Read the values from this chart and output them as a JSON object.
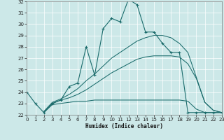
{
  "xlabel": "Humidex (Indice chaleur)",
  "xlim": [
    0,
    23
  ],
  "ylim": [
    22,
    32
  ],
  "xticks": [
    0,
    1,
    2,
    3,
    4,
    5,
    6,
    7,
    8,
    9,
    10,
    11,
    12,
    13,
    14,
    15,
    16,
    17,
    18,
    19,
    20,
    21,
    22,
    23
  ],
  "yticks": [
    22,
    23,
    24,
    25,
    26,
    27,
    28,
    29,
    30,
    31,
    32
  ],
  "bg_color": "#cce8e8",
  "line_color": "#1a6b6b",
  "series": [
    {
      "x": [
        0,
        1,
        2,
        3,
        4,
        5,
        6,
        7,
        8,
        9,
        10,
        11,
        12,
        13,
        14,
        15,
        16,
        17,
        18,
        19,
        20,
        21,
        22,
        23
      ],
      "y": [
        24,
        23,
        22.2,
        23,
        23.3,
        24.5,
        24.8,
        28.0,
        25.5,
        29.6,
        30.5,
        30.2,
        32.2,
        31.7,
        29.3,
        29.3,
        28.3,
        27.5,
        27.5,
        22.2,
        22.2,
        22.2,
        22.2,
        22.2
      ],
      "marker": true
    },
    {
      "x": [
        2,
        3,
        4,
        5,
        6,
        7,
        8,
        9,
        10,
        11,
        12,
        13,
        14,
        15,
        16,
        17,
        18,
        19,
        20,
        21,
        22,
        23
      ],
      "y": [
        22.2,
        22.9,
        23.0,
        23.1,
        23.2,
        23.2,
        23.3,
        23.3,
        23.3,
        23.3,
        23.3,
        23.3,
        23.3,
        23.3,
        23.3,
        23.3,
        23.3,
        23.2,
        22.5,
        22.2,
        22.2,
        22.2
      ],
      "marker": false
    },
    {
      "x": [
        2,
        3,
        4,
        5,
        6,
        7,
        8,
        9,
        10,
        11,
        12,
        13,
        14,
        15,
        16,
        17,
        18,
        19,
        20,
        21,
        22,
        23
      ],
      "y": [
        22.2,
        23.0,
        23.3,
        23.5,
        23.8,
        24.2,
        24.7,
        25.2,
        25.7,
        26.1,
        26.5,
        26.9,
        27.1,
        27.2,
        27.2,
        27.2,
        27.1,
        26.5,
        25.2,
        23.1,
        22.4,
        22.2
      ],
      "marker": false
    },
    {
      "x": [
        2,
        3,
        4,
        5,
        6,
        7,
        8,
        9,
        10,
        11,
        12,
        13,
        14,
        15,
        16,
        17,
        18,
        19,
        20,
        21,
        22,
        23
      ],
      "y": [
        22.3,
        23.1,
        23.4,
        23.8,
        24.3,
        25.0,
        25.6,
        26.3,
        27.0,
        27.5,
        28.0,
        28.5,
        28.8,
        29.0,
        29.0,
        28.8,
        28.3,
        27.5,
        25.3,
        23.1,
        22.4,
        22.2
      ],
      "marker": false
    }
  ]
}
